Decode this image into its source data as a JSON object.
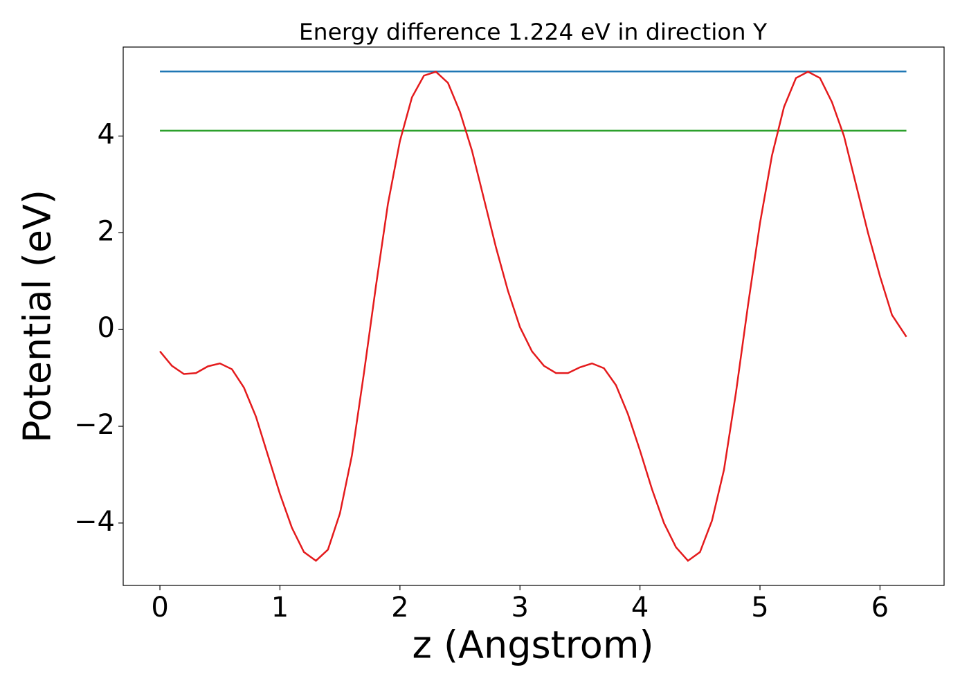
{
  "chart_data": {
    "type": "line",
    "title": "Energy difference 1.224 eV in direction Y",
    "xlabel": "z (Angstrom)",
    "ylabel": "Potential (eV)",
    "xlim": [
      -0.306,
      6.534
    ],
    "ylim": [
      -5.29,
      5.84
    ],
    "xticks": [
      0,
      1,
      2,
      3,
      4,
      5,
      6
    ],
    "yticks": [
      {
        "value": -4,
        "label": "−4"
      },
      {
        "value": -2,
        "label": "−2"
      },
      0,
      2,
      4
    ],
    "grid": false,
    "series": [
      {
        "color": "#1f77b4",
        "x": [
          0,
          6.22
        ],
        "values": [
          5.335,
          5.335
        ]
      },
      {
        "color": "#2ca02c",
        "x": [
          0,
          6.22
        ],
        "values": [
          4.111,
          4.111
        ]
      },
      {
        "color": "#e41a1c",
        "x": [
          0,
          0.1,
          0.2,
          0.3,
          0.4,
          0.5,
          0.6,
          0.7,
          0.8,
          0.9,
          1.0,
          1.1,
          1.2,
          1.3,
          1.4,
          1.5,
          1.6,
          1.7,
          1.8,
          1.9,
          2.0,
          2.1,
          2.2,
          2.3,
          2.4,
          2.5,
          2.6,
          2.7,
          2.8,
          2.9,
          3.0,
          3.1,
          3.2,
          3.3,
          3.4,
          3.5,
          3.6,
          3.7,
          3.8,
          3.9,
          4.0,
          4.1,
          4.2,
          4.3,
          4.4,
          4.5,
          4.6,
          4.7,
          4.8,
          4.9,
          5.0,
          5.1,
          5.2,
          5.3,
          5.4,
          5.5,
          5.6,
          5.7,
          5.8,
          5.9,
          6.0,
          6.1,
          6.22
        ],
        "values": [
          -0.45,
          -0.75,
          -0.92,
          -0.9,
          -0.76,
          -0.7,
          -0.82,
          -1.2,
          -1.8,
          -2.6,
          -3.4,
          -4.1,
          -4.6,
          -4.78,
          -4.55,
          -3.8,
          -2.6,
          -0.9,
          0.9,
          2.6,
          3.9,
          4.8,
          5.25,
          5.33,
          5.1,
          4.5,
          3.7,
          2.7,
          1.7,
          0.8,
          0.05,
          -0.45,
          -0.75,
          -0.9,
          -0.9,
          -0.78,
          -0.7,
          -0.8,
          -1.15,
          -1.75,
          -2.5,
          -3.3,
          -4.0,
          -4.5,
          -4.78,
          -4.6,
          -3.95,
          -2.9,
          -1.3,
          0.5,
          2.2,
          3.6,
          4.6,
          5.2,
          5.33,
          5.2,
          4.7,
          4.0,
          3.0,
          2.0,
          1.1,
          0.3,
          -0.15
        ]
      }
    ]
  }
}
